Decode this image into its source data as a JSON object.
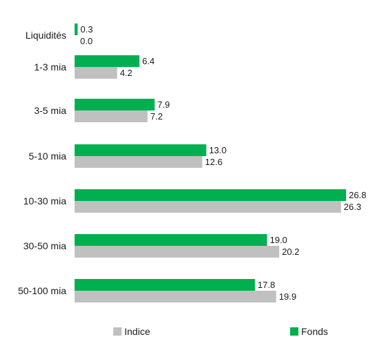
{
  "chart_data": {
    "type": "bar",
    "orientation": "horizontal",
    "categories": [
      "Liquidités",
      "1-3 mia",
      "3-5 mia",
      "5-10 mia",
      "10-30 mia",
      "30-50 mia",
      "50-100 mia"
    ],
    "series": [
      {
        "name": "Fonds",
        "color": "#00b050",
        "values": [
          0.3,
          6.4,
          7.9,
          13.0,
          26.8,
          19.0,
          17.8
        ],
        "labels": [
          "0.3",
          "6.4",
          "7.9",
          "13.0",
          "26.8",
          "19.0",
          "17.8"
        ]
      },
      {
        "name": "Indice",
        "color": "#c0c0c0",
        "values": [
          0.0,
          4.2,
          7.2,
          12.6,
          26.3,
          20.2,
          19.9
        ],
        "labels": [
          "0.0",
          "4.2",
          "7.2",
          "12.6",
          "26.3",
          "20.2",
          "19.9"
        ]
      }
    ],
    "xlim": [
      0,
      26.8
    ],
    "grid": false,
    "legend_position": "bottom"
  },
  "legend": {
    "items": [
      {
        "label": "Indice",
        "color": "#c0c0c0"
      },
      {
        "label": "Fonds",
        "color": "#00b050"
      }
    ]
  }
}
